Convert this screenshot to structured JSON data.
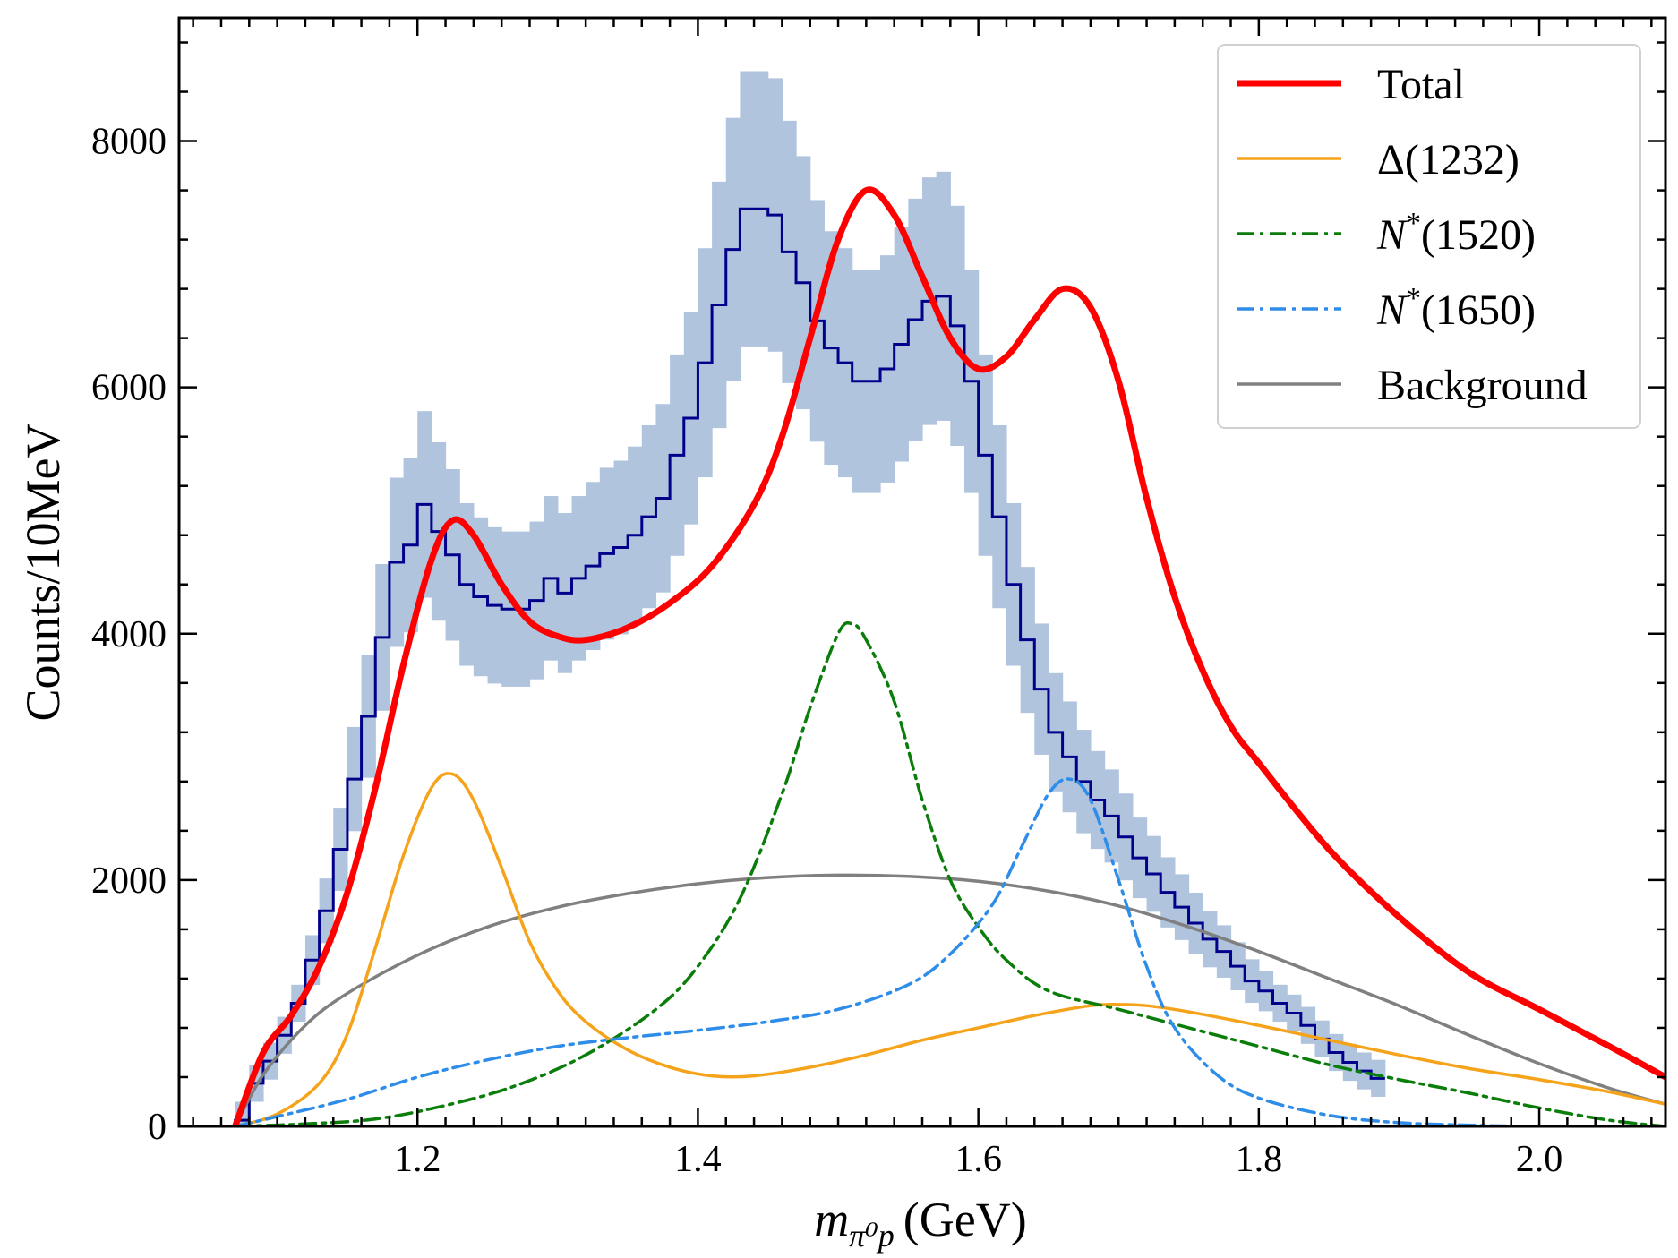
{
  "chart_data": {
    "type": "line",
    "title": "",
    "xlabel": {
      "main": "m",
      "sub": "π⁰p",
      "unit": "(GeV)"
    },
    "ylabel": "Counts/10MeV",
    "xlim": [
      1.03,
      2.09
    ],
    "ylim": [
      0,
      9000
    ],
    "xticks": [
      1.2,
      1.4,
      1.6,
      1.8,
      2.0
    ],
    "xtick_labels": [
      "1.2",
      "1.4",
      "1.6",
      "1.8",
      "2.0"
    ],
    "yticks": [
      0,
      2000,
      4000,
      6000,
      8000
    ],
    "ytick_labels": [
      "0",
      "2000",
      "4000",
      "6000",
      "8000"
    ],
    "grid": false,
    "legend_position": "top-right",
    "data_hist": {
      "bin_width": 0.01,
      "x_start": 1.07,
      "color": "#00008b",
      "band_color": "#b0c4de",
      "values": [
        50,
        350,
        530,
        740,
        1000,
        1350,
        1750,
        2250,
        2820,
        3330,
        3970,
        4580,
        4720,
        5050,
        4830,
        4640,
        4400,
        4300,
        4230,
        4200,
        4200,
        4270,
        4450,
        4330,
        4450,
        4550,
        4650,
        4700,
        4800,
        4950,
        5100,
        5450,
        5750,
        6200,
        6670,
        7120,
        7450,
        7450,
        7400,
        7100,
        6850,
        6540,
        6320,
        6200,
        6050,
        6050,
        6150,
        6350,
        6550,
        6700,
        6740,
        6500,
        6050,
        5450,
        4950,
        4400,
        3950,
        3550,
        3200,
        3000,
        2800,
        2650,
        2520,
        2350,
        2180,
        2050,
        1900,
        1780,
        1650,
        1520,
        1420,
        1300,
        1180,
        1100,
        1000,
        920,
        820,
        710,
        600,
        520,
        450,
        390
      ]
    },
    "series": [
      {
        "name": "Total",
        "color": "#ff0000",
        "style": "solid",
        "x": [
          1.07,
          1.09,
          1.11,
          1.13,
          1.15,
          1.17,
          1.19,
          1.21,
          1.225,
          1.24,
          1.26,
          1.28,
          1.3,
          1.32,
          1.35,
          1.38,
          1.41,
          1.44,
          1.46,
          1.48,
          1.5,
          1.52,
          1.54,
          1.56,
          1.58,
          1.6,
          1.62,
          1.64,
          1.66,
          1.68,
          1.7,
          1.72,
          1.74,
          1.76,
          1.78,
          1.8,
          1.85,
          1.9,
          1.95,
          2.0,
          2.05,
          2.09
        ],
        "values": [
          0,
          600,
          900,
          1300,
          1900,
          2750,
          3750,
          4600,
          4920,
          4800,
          4400,
          4100,
          3980,
          3950,
          4050,
          4250,
          4550,
          5050,
          5600,
          6400,
          7200,
          7600,
          7400,
          6900,
          6400,
          6150,
          6250,
          6550,
          6800,
          6650,
          6050,
          5100,
          4300,
          3700,
          3250,
          2950,
          2250,
          1700,
          1250,
          950,
          650,
          400
        ]
      },
      {
        "name": "Δ(1232)",
        "color": "#f5a31a",
        "style": "solid",
        "x": [
          1.07,
          1.1,
          1.13,
          1.15,
          1.17,
          1.19,
          1.21,
          1.225,
          1.24,
          1.26,
          1.28,
          1.3,
          1.32,
          1.35,
          1.38,
          1.41,
          1.44,
          1.48,
          1.52,
          1.56,
          1.6,
          1.64,
          1.68,
          1.7,
          1.72,
          1.75,
          1.8,
          1.85,
          1.9,
          1.95,
          2.0,
          2.05,
          2.09
        ],
        "values": [
          0,
          100,
          350,
          750,
          1450,
          2200,
          2750,
          2860,
          2650,
          2100,
          1500,
          1100,
          850,
          620,
          480,
          410,
          410,
          480,
          580,
          700,
          800,
          900,
          980,
          990,
          980,
          930,
          820,
          700,
          580,
          470,
          380,
          280,
          180
        ]
      },
      {
        "name": "N*(1520)",
        "color": "#0a7d0a",
        "style": "dashdot",
        "x": [
          1.07,
          1.12,
          1.17,
          1.22,
          1.27,
          1.32,
          1.37,
          1.4,
          1.43,
          1.46,
          1.48,
          1.5,
          1.51,
          1.52,
          1.54,
          1.56,
          1.58,
          1.6,
          1.62,
          1.65,
          1.7,
          1.75,
          1.8,
          1.85,
          1.9,
          1.95,
          2.0,
          2.05,
          2.09
        ],
        "values": [
          0,
          20,
          60,
          170,
          330,
          580,
          950,
          1300,
          1850,
          2700,
          3400,
          4000,
          4080,
          3950,
          3450,
          2650,
          2000,
          1620,
          1350,
          1100,
          950,
          800,
          650,
          500,
          380,
          270,
          150,
          50,
          0
        ]
      },
      {
        "name": "N*(1650)",
        "color": "#2e8de8",
        "style": "dashdot",
        "x": [
          1.07,
          1.1,
          1.15,
          1.2,
          1.25,
          1.3,
          1.35,
          1.4,
          1.45,
          1.5,
          1.55,
          1.58,
          1.61,
          1.63,
          1.65,
          1.665,
          1.68,
          1.7,
          1.72,
          1.74,
          1.77,
          1.8,
          1.85,
          1.9,
          1.95,
          2.0,
          2.09
        ],
        "values": [
          0,
          80,
          220,
          400,
          540,
          650,
          720,
          780,
          850,
          950,
          1150,
          1400,
          1800,
          2250,
          2700,
          2820,
          2650,
          2000,
          1300,
          800,
          420,
          230,
          90,
          30,
          10,
          0,
          0
        ]
      },
      {
        "name": "Background",
        "color": "#808080",
        "style": "solid",
        "x": [
          1.07,
          1.09,
          1.12,
          1.15,
          1.2,
          1.25,
          1.3,
          1.35,
          1.4,
          1.45,
          1.5,
          1.55,
          1.6,
          1.65,
          1.7,
          1.75,
          1.8,
          1.85,
          1.9,
          1.95,
          2.0,
          2.05,
          2.09
        ],
        "values": [
          0,
          420,
          820,
          1080,
          1390,
          1620,
          1780,
          1890,
          1970,
          2020,
          2040,
          2030,
          1990,
          1910,
          1790,
          1620,
          1420,
          1200,
          980,
          740,
          510,
          310,
          180
        ]
      }
    ],
    "legend_order": [
      "Total",
      "Δ(1232)",
      "N*(1520)",
      "N*(1650)",
      "Background"
    ]
  }
}
